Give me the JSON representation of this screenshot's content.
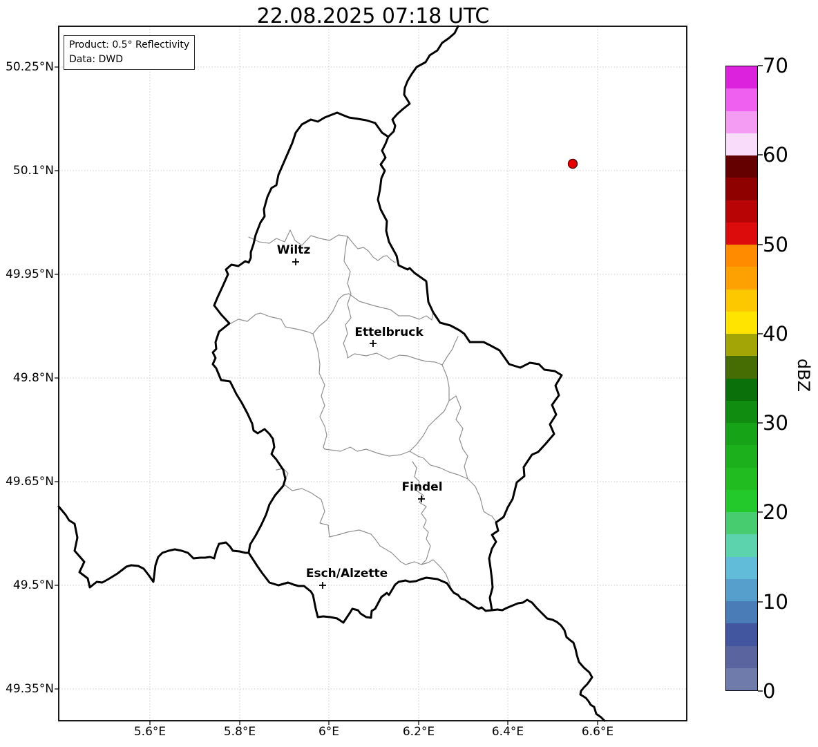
{
  "title": "22.08.2025 07:18 UTC",
  "info_box": {
    "line1": "Product: 0.5° Reflectivity",
    "line2": "Data: DWD"
  },
  "axes": {
    "lat": [
      "50.25°N",
      "50.1°N",
      "49.95°N",
      "49.8°N",
      "49.65°N",
      "49.5°N",
      "49.35°N"
    ],
    "lon": [
      "5.6°E",
      "5.8°E",
      "6°E",
      "6.2°E",
      "6.4°E",
      "6.6°E"
    ]
  },
  "cities": [
    {
      "name": "Wiltz"
    },
    {
      "name": "Ettelbruck"
    },
    {
      "name": "Findel"
    },
    {
      "name": "Esch/Alzette"
    }
  ],
  "radar_point": {
    "color": "#e60000",
    "edge_color": "#550000"
  },
  "colorbar": {
    "label": "dBZ",
    "ticks": [
      "70",
      "60",
      "50",
      "40",
      "30",
      "20",
      "10",
      "0"
    ],
    "range": [
      0,
      70
    ],
    "step": 2.5,
    "colors": [
      "#6e7bab",
      "#5a659f",
      "#42569f",
      "#4a7db8",
      "#569ecb",
      "#60bcd8",
      "#5cd3ac",
      "#47cc70",
      "#23c82a",
      "#20bc20",
      "#1cb01c",
      "#17a317",
      "#108c10",
      "#0a700a",
      "#466c04",
      "#a3a405",
      "#ffe400",
      "#fec800",
      "#fda002",
      "#ff8c00",
      "#dd0c0c",
      "#b80404",
      "#8f0000",
      "#650000",
      "#f9dcf9",
      "#f49cf4",
      "#f060f0",
      "#dd22dd"
    ]
  }
}
